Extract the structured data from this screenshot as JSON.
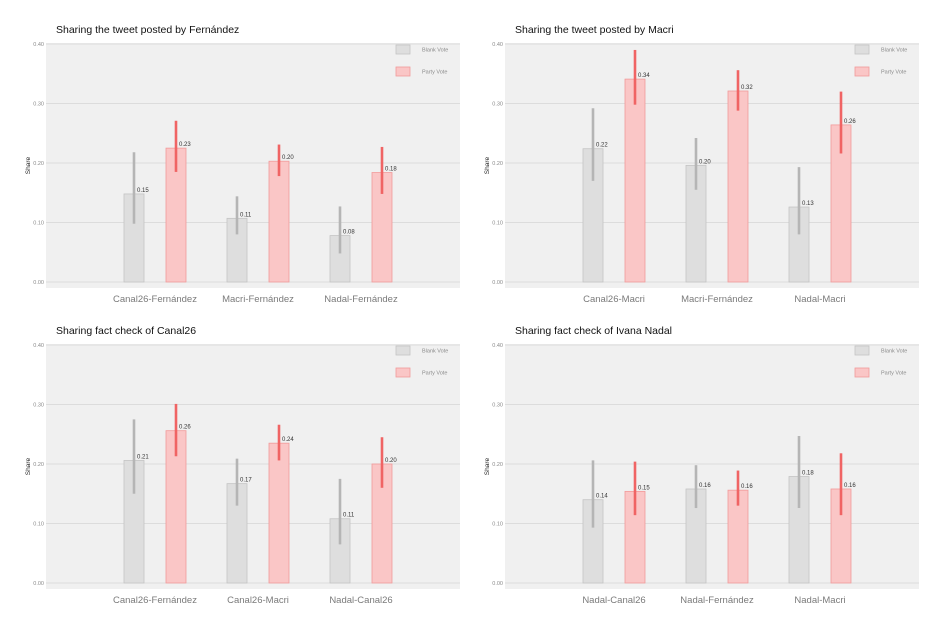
{
  "colors": {
    "panel_bg": "#f0f0f0",
    "grid": "#d6d6d6",
    "blank_fill": "#dedede",
    "blank_stroke": "#c4c4c4",
    "blank_err": "#b5b5b5",
    "party_fill": "#fac6c6",
    "party_stroke": "#f29a9a",
    "party_err": "#f06464",
    "tick_text": "#8a8a8a",
    "label_text": "#333333"
  },
  "chart_data": [
    {
      "type": "bar",
      "title": "Sharing the tweet posted by Fernández",
      "ylabel": "Share",
      "ylim": [
        0,
        0.4
      ],
      "yticks": [
        "0.00",
        "0.10",
        "0.20",
        "0.30",
        "0.40"
      ],
      "grid": true,
      "legend_position": "top-right",
      "categories": [
        "Canal26-Fernández",
        "Macri-Fernández",
        "Nadal-Fernández"
      ],
      "series": [
        {
          "name": "Blank Vote",
          "values": [
            0.148,
            0.107,
            0.078
          ],
          "labels": [
            "0.15",
            "0.11",
            "0.08"
          ],
          "err_low": [
            0.098,
            0.08,
            0.048
          ],
          "err_high": [
            0.218,
            0.144,
            0.127
          ]
        },
        {
          "name": "Party Vote",
          "values": [
            0.225,
            0.203,
            0.184
          ],
          "labels": [
            "0.23",
            "0.20",
            "0.18"
          ],
          "err_low": [
            0.185,
            0.178,
            0.148
          ],
          "err_high": [
            0.271,
            0.231,
            0.227
          ]
        }
      ]
    },
    {
      "type": "bar",
      "title": "Sharing the tweet posted by Macri",
      "ylabel": "Share",
      "ylim": [
        0,
        0.4
      ],
      "yticks": [
        "0.00",
        "0.10",
        "0.20",
        "0.30",
        "0.40"
      ],
      "grid": true,
      "legend_position": "top-right",
      "categories": [
        "Canal26-Macri",
        "Macri-Fernández",
        "Nadal-Macri"
      ],
      "series": [
        {
          "name": "Blank Vote",
          "values": [
            0.224,
            0.196,
            0.126
          ],
          "labels": [
            "0.22",
            "0.20",
            "0.13"
          ],
          "err_low": [
            0.17,
            0.155,
            0.08
          ],
          "err_high": [
            0.292,
            0.242,
            0.193
          ]
        },
        {
          "name": "Party Vote",
          "values": [
            0.341,
            0.321,
            0.264
          ],
          "labels": [
            "0.34",
            "0.32",
            "0.26"
          ],
          "err_low": [
            0.298,
            0.288,
            0.216
          ],
          "err_high": [
            0.39,
            0.356,
            0.32
          ]
        }
      ]
    },
    {
      "type": "bar",
      "title": "Sharing fact check of Canal26",
      "ylabel": "Share",
      "ylim": [
        0,
        0.4
      ],
      "yticks": [
        "0.00",
        "0.10",
        "0.20",
        "0.30",
        "0.40"
      ],
      "grid": true,
      "legend_position": "top-right",
      "categories": [
        "Canal26-Fernández",
        "Canal26-Macri",
        "Nadal-Canal26"
      ],
      "series": [
        {
          "name": "Blank Vote",
          "values": [
            0.206,
            0.167,
            0.108
          ],
          "labels": [
            "0.21",
            "0.17",
            "0.11"
          ],
          "err_low": [
            0.15,
            0.13,
            0.065
          ],
          "err_high": [
            0.275,
            0.209,
            0.175
          ]
        },
        {
          "name": "Party Vote",
          "values": [
            0.256,
            0.235,
            0.2
          ],
          "labels": [
            "0.26",
            "0.24",
            "0.20"
          ],
          "err_low": [
            0.213,
            0.206,
            0.16
          ],
          "err_high": [
            0.301,
            0.266,
            0.245
          ]
        }
      ]
    },
    {
      "type": "bar",
      "title": "Sharing fact check of Ivana Nadal",
      "ylabel": "Share",
      "ylim": [
        0,
        0.4
      ],
      "yticks": [
        "0.00",
        "0.10",
        "0.20",
        "0.30",
        "0.40"
      ],
      "grid": true,
      "legend_position": "top-right",
      "categories": [
        "Nadal-Canal26",
        "Nadal-Fernández",
        "Nadal-Macri"
      ],
      "series": [
        {
          "name": "Blank Vote",
          "values": [
            0.14,
            0.158,
            0.179
          ],
          "labels": [
            "0.14",
            "0.16",
            "0.18"
          ],
          "err_low": [
            0.093,
            0.126,
            0.126
          ],
          "err_high": [
            0.206,
            0.198,
            0.247
          ]
        },
        {
          "name": "Party Vote",
          "values": [
            0.154,
            0.156,
            0.158
          ],
          "labels": [
            "0.15",
            "0.16",
            "0.16"
          ],
          "err_low": [
            0.114,
            0.13,
            0.114
          ],
          "err_high": [
            0.204,
            0.189,
            0.218
          ]
        }
      ]
    }
  ]
}
